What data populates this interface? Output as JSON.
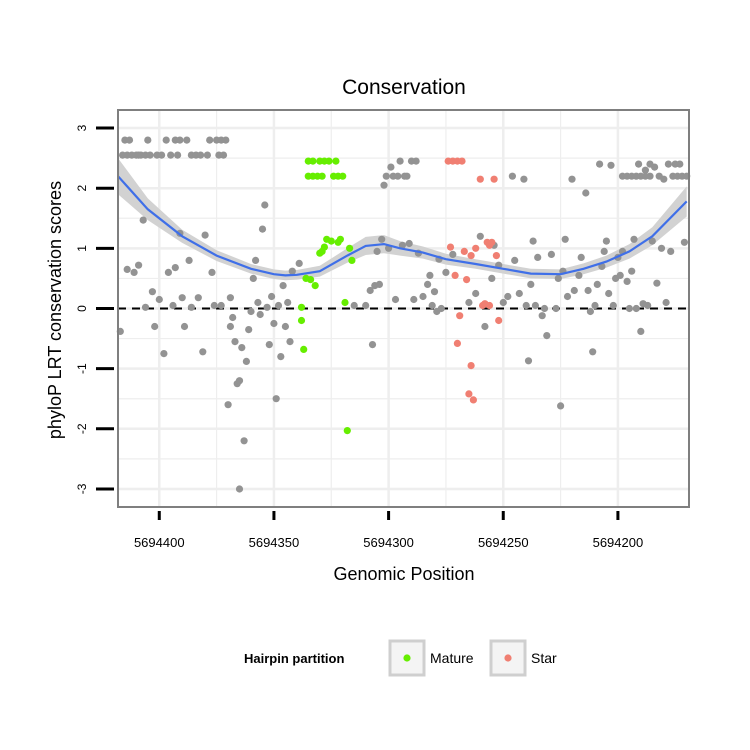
{
  "chart_data": {
    "type": "scatter",
    "title": "Conservation",
    "xlabel": "Genomic Position",
    "ylabel": "phyloP LRT conservation scores",
    "x_reversed": true,
    "xlim": [
      5694418,
      5694169
    ],
    "ylim": [
      -3.3,
      3.3
    ],
    "x_ticks": [
      5694400,
      5694350,
      5694300,
      5694250,
      5694200
    ],
    "x_tick_labels": [
      "5694400",
      "5694350",
      "5694300",
      "5694250",
      "5694200"
    ],
    "y_ticks": [
      -3,
      -2,
      -1,
      0,
      1,
      2,
      3
    ],
    "y_tick_labels": [
      "-3",
      "-2",
      "-1",
      "0",
      "1",
      "2",
      "3"
    ],
    "grid": true,
    "reference_line": {
      "y": 0,
      "style": "dashed"
    },
    "legend": {
      "title": "Hairpin partition",
      "placement": "bottom",
      "entries": [
        {
          "label": "Mature",
          "color": "#66ee00"
        },
        {
          "label": "Star",
          "color": "#f07f72"
        }
      ]
    },
    "colors": {
      "other": "#939393",
      "Mature": "#66ee00",
      "Star": "#f07f72",
      "smooth": "#3f6fe8",
      "ribbon": "#d2d2d2",
      "panel_border": "#7f7f7f",
      "grid": "#eeeeee"
    },
    "series": [
      {
        "group": "other",
        "points": [
          [
            5694417,
            -0.38
          ],
          [
            5694416,
            2.55
          ],
          [
            5694415,
            2.8
          ],
          [
            5694414,
            2.55
          ],
          [
            5694414,
            0.65
          ],
          [
            5694413,
            2.8
          ],
          [
            5694412,
            2.55
          ],
          [
            5694411,
            0.6
          ],
          [
            5694410,
            2.55
          ],
          [
            5694409,
            0.72
          ],
          [
            5694409,
            2.55
          ],
          [
            5694408,
            2.55
          ],
          [
            5694407,
            1.47
          ],
          [
            5694406,
            2.55
          ],
          [
            5694406,
            0.02
          ],
          [
            5694405,
            2.8
          ],
          [
            5694404,
            2.55
          ],
          [
            5694403,
            0.28
          ],
          [
            5694402,
            -0.3
          ],
          [
            5694401,
            2.55
          ],
          [
            5694400,
            0.15
          ],
          [
            5694399,
            2.55
          ],
          [
            5694398,
            -0.75
          ],
          [
            5694397,
            2.8
          ],
          [
            5694396,
            0.6
          ],
          [
            5694395,
            2.55
          ],
          [
            5694394,
            0.05
          ],
          [
            5694393,
            2.8
          ],
          [
            5694393,
            0.68
          ],
          [
            5694392,
            2.55
          ],
          [
            5694391,
            2.8
          ],
          [
            5694391,
            1.25
          ],
          [
            5694390,
            0.18
          ],
          [
            5694389,
            -0.3
          ],
          [
            5694388,
            2.8
          ],
          [
            5694387,
            0.8
          ],
          [
            5694386,
            0.02
          ],
          [
            5694386,
            2.55
          ],
          [
            5694384,
            2.55
          ],
          [
            5694383,
            0.18
          ],
          [
            5694382,
            2.55
          ],
          [
            5694381,
            -0.72
          ],
          [
            5694380,
            1.22
          ],
          [
            5694379,
            2.55
          ],
          [
            5694378,
            2.8
          ],
          [
            5694377,
            0.6
          ],
          [
            5694376,
            0.05
          ],
          [
            5694375,
            2.8
          ],
          [
            5694374,
            2.55
          ],
          [
            5694373,
            0.05
          ],
          [
            5694373,
            2.8
          ],
          [
            5694372,
            2.55
          ],
          [
            5694371,
            2.8
          ],
          [
            5694370,
            -1.6
          ],
          [
            5694369,
            0.18
          ],
          [
            5694369,
            -0.3
          ],
          [
            5694368,
            -0.15
          ],
          [
            5694367,
            -0.55
          ],
          [
            5694366,
            -1.25
          ],
          [
            5694365,
            -3.0
          ],
          [
            5694365,
            -1.2
          ],
          [
            5694364,
            -0.65
          ],
          [
            5694363,
            -2.2
          ],
          [
            5694362,
            -0.88
          ],
          [
            5694361,
            -0.35
          ],
          [
            5694360,
            -0.05
          ],
          [
            5694359,
            0.5
          ],
          [
            5694358,
            0.8
          ],
          [
            5694357,
            0.1
          ],
          [
            5694356,
            -0.1
          ],
          [
            5694355,
            1.32
          ],
          [
            5694354,
            1.72
          ],
          [
            5694353,
            0.02
          ],
          [
            5694352,
            -0.6
          ],
          [
            5694351,
            0.2
          ],
          [
            5694350,
            -0.25
          ],
          [
            5694349,
            -1.5
          ],
          [
            5694348,
            0.05
          ],
          [
            5694347,
            -0.8
          ],
          [
            5694346,
            0.38
          ],
          [
            5694345,
            -0.3
          ],
          [
            5694344,
            0.1
          ],
          [
            5694343,
            -0.55
          ],
          [
            5694342,
            0.62
          ],
          [
            5694339,
            0.75
          ],
          [
            5694315,
            0.05
          ],
          [
            5694310,
            0.05
          ],
          [
            5694308,
            0.3
          ],
          [
            5694307,
            -0.6
          ],
          [
            5694306,
            0.38
          ],
          [
            5694305,
            0.95
          ],
          [
            5694304,
            0.4
          ],
          [
            5694303,
            1.15
          ],
          [
            5694302,
            2.05
          ],
          [
            5694301,
            2.2
          ],
          [
            5694300,
            1.0
          ],
          [
            5694299,
            2.35
          ],
          [
            5694298,
            2.2
          ],
          [
            5694297,
            0.15
          ],
          [
            5694296,
            2.2
          ],
          [
            5694295,
            2.45
          ],
          [
            5694294,
            1.05
          ],
          [
            5694293,
            2.2
          ],
          [
            5694292,
            2.2
          ],
          [
            5694291,
            1.08
          ],
          [
            5694290,
            2.45
          ],
          [
            5694289,
            0.15
          ],
          [
            5694288,
            2.45
          ],
          [
            5694287,
            0.92
          ],
          [
            5694285,
            0.2
          ],
          [
            5694283,
            0.4
          ],
          [
            5694282,
            0.55
          ],
          [
            5694281,
            0.05
          ],
          [
            5694280,
            0.28
          ],
          [
            5694279,
            -0.05
          ],
          [
            5694278,
            0.82
          ],
          [
            5694277,
            0.0
          ],
          [
            5694275,
            0.6
          ],
          [
            5694272,
            0.9
          ],
          [
            5694265,
            0.1
          ],
          [
            5694262,
            0.25
          ],
          [
            5694260,
            1.2
          ],
          [
            5694258,
            -0.3
          ],
          [
            5694255,
            0.5
          ],
          [
            5694254,
            1.05
          ],
          [
            5694252,
            0.72
          ],
          [
            5694250,
            0.1
          ],
          [
            5694248,
            0.2
          ],
          [
            5694246,
            2.2
          ],
          [
            5694245,
            0.8
          ],
          [
            5694243,
            0.25
          ],
          [
            5694241,
            2.15
          ],
          [
            5694240,
            0.05
          ],
          [
            5694239,
            -0.87
          ],
          [
            5694238,
            0.4
          ],
          [
            5694237,
            1.12
          ],
          [
            5694236,
            0.05
          ],
          [
            5694235,
            0.85
          ],
          [
            5694233,
            -0.12
          ],
          [
            5694232,
            0.0
          ],
          [
            5694231,
            -0.45
          ],
          [
            5694229,
            0.9
          ],
          [
            5694227,
            0.0
          ],
          [
            5694226,
            0.5
          ],
          [
            5694225,
            -1.62
          ],
          [
            5694224,
            0.62
          ],
          [
            5694223,
            1.15
          ],
          [
            5694222,
            0.2
          ],
          [
            5694220,
            2.15
          ],
          [
            5694219,
            0.3
          ],
          [
            5694217,
            0.55
          ],
          [
            5694216,
            0.85
          ],
          [
            5694214,
            1.92
          ],
          [
            5694213,
            0.3
          ],
          [
            5694212,
            -0.05
          ],
          [
            5694211,
            -0.72
          ],
          [
            5694210,
            0.05
          ],
          [
            5694209,
            0.4
          ],
          [
            5694208,
            2.4
          ],
          [
            5694207,
            0.7
          ],
          [
            5694206,
            0.95
          ],
          [
            5694205,
            1.12
          ],
          [
            5694204,
            0.25
          ],
          [
            5694203,
            2.38
          ],
          [
            5694202,
            0.05
          ],
          [
            5694201,
            0.5
          ],
          [
            5694200,
            0.85
          ],
          [
            5694199,
            0.55
          ],
          [
            5694198,
            0.95
          ],
          [
            5694196,
            0.45
          ],
          [
            5694195,
            0.0
          ],
          [
            5694194,
            0.62
          ],
          [
            5694193,
            1.15
          ],
          [
            5694192,
            0.0
          ],
          [
            5694191,
            2.4
          ],
          [
            5694190,
            -0.38
          ],
          [
            5694189,
            0.08
          ],
          [
            5694188,
            2.3
          ],
          [
            5694187,
            0.05
          ],
          [
            5694186,
            2.2
          ],
          [
            5694185,
            1.12
          ],
          [
            5694184,
            2.35
          ],
          [
            5694183,
            0.42
          ],
          [
            5694182,
            2.2
          ],
          [
            5694181,
            1.0
          ],
          [
            5694180,
            2.15
          ],
          [
            5694179,
            0.1
          ],
          [
            5694178,
            2.4
          ],
          [
            5694177,
            0.95
          ],
          [
            5694176,
            2.2
          ],
          [
            5694175,
            2.4
          ],
          [
            5694174,
            2.2
          ],
          [
            5694173,
            2.4
          ],
          [
            5694172,
            2.2
          ],
          [
            5694171,
            1.1
          ],
          [
            5694170,
            2.2
          ],
          [
            5694198,
            2.2
          ],
          [
            5694196,
            2.2
          ],
          [
            5694194,
            2.2
          ],
          [
            5694192,
            2.2
          ],
          [
            5694190,
            2.2
          ],
          [
            5694188,
            2.2
          ],
          [
            5694186,
            2.4
          ]
        ]
      },
      {
        "group": "Mature",
        "name": "Mature",
        "points": [
          [
            5694338,
            0.02
          ],
          [
            5694338,
            -0.2
          ],
          [
            5694337,
            -0.68
          ],
          [
            5694336,
            0.5
          ],
          [
            5694335,
            2.2
          ],
          [
            5694335,
            2.45
          ],
          [
            5694334,
            0.48
          ],
          [
            5694333,
            2.2
          ],
          [
            5694333,
            2.45
          ],
          [
            5694332,
            0.38
          ],
          [
            5694331,
            2.2
          ],
          [
            5694330,
            2.45
          ],
          [
            5694330,
            0.92
          ],
          [
            5694329,
            2.2
          ],
          [
            5694329,
            0.95
          ],
          [
            5694328,
            2.45
          ],
          [
            5694328,
            1.02
          ],
          [
            5694327,
            1.15
          ],
          [
            5694326,
            2.45
          ],
          [
            5694325,
            1.12
          ],
          [
            5694324,
            2.2
          ],
          [
            5694323,
            2.45
          ],
          [
            5694322,
            2.2
          ],
          [
            5694322,
            1.1
          ],
          [
            5694321,
            1.15
          ],
          [
            5694320,
            2.2
          ],
          [
            5694319,
            0.1
          ],
          [
            5694318,
            -2.03
          ],
          [
            5694317,
            1.0
          ],
          [
            5694316,
            0.8
          ]
        ]
      },
      {
        "group": "Star",
        "name": "Star",
        "points": [
          [
            5694274,
            2.45
          ],
          [
            5694273,
            1.02
          ],
          [
            5694272,
            2.45
          ],
          [
            5694271,
            0.55
          ],
          [
            5694270,
            -0.58
          ],
          [
            5694270,
            2.45
          ],
          [
            5694269,
            -0.12
          ],
          [
            5694268,
            2.45
          ],
          [
            5694267,
            0.95
          ],
          [
            5694266,
            0.48
          ],
          [
            5694265,
            -1.42
          ],
          [
            5694264,
            -0.95
          ],
          [
            5694264,
            0.88
          ],
          [
            5694263,
            -1.52
          ],
          [
            5694262,
            1.0
          ],
          [
            5694260,
            2.15
          ],
          [
            5694259,
            0.05
          ],
          [
            5694258,
            0.08
          ],
          [
            5694257,
            1.1
          ],
          [
            5694256,
            0.05
          ],
          [
            5694256,
            1.05
          ],
          [
            5694255,
            1.1
          ],
          [
            5694254,
            2.15
          ],
          [
            5694253,
            0.88
          ],
          [
            5694252,
            -0.2
          ]
        ]
      }
    ],
    "smooth": {
      "x": [
        5694418,
        5694405,
        5694390,
        5694375,
        5694360,
        5694350,
        5694345,
        5694340,
        5694330,
        5694318,
        5694310,
        5694302,
        5694295,
        5694285,
        5694275,
        5694262,
        5694250,
        5694238,
        5694225,
        5694215,
        5694205,
        5694195,
        5694185,
        5694170
      ],
      "y": [
        2.2,
        1.65,
        1.2,
        0.88,
        0.66,
        0.57,
        0.55,
        0.56,
        0.62,
        0.88,
        1.04,
        1.07,
        1.0,
        0.93,
        0.82,
        0.74,
        0.66,
        0.58,
        0.57,
        0.66,
        0.78,
        0.95,
        1.2,
        1.78
      ],
      "se": [
        0.3,
        0.18,
        0.11,
        0.09,
        0.08,
        0.08,
        0.08,
        0.08,
        0.09,
        0.12,
        0.15,
        0.15,
        0.12,
        0.1,
        0.09,
        0.08,
        0.08,
        0.08,
        0.08,
        0.09,
        0.1,
        0.12,
        0.15,
        0.25
      ]
    }
  }
}
